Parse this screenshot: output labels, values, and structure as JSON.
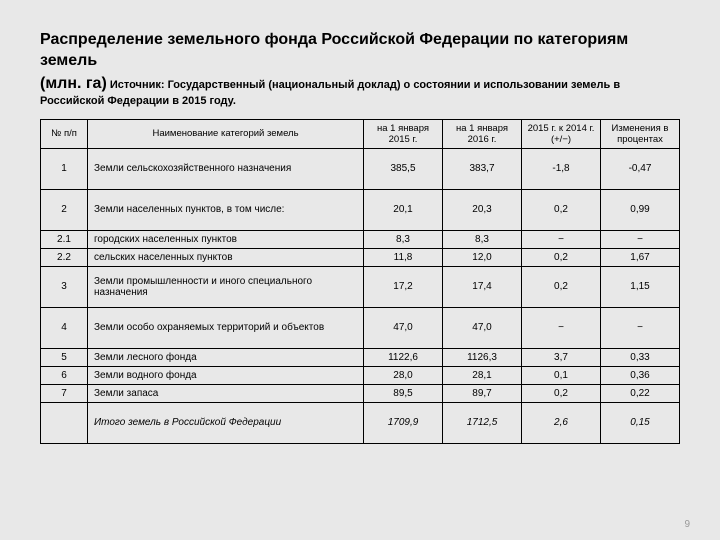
{
  "title_line1": "Распределение земельного фонда Российской Федерации по категориям земель",
  "subtitle_big": "(млн. га)",
  "subtitle_small": "Источник: Государственный (национальный доклад) о состоянии и использовании земель в Российской Федерации в 2015 году.",
  "headers": {
    "col1": "№ п/п",
    "col2": "Наименование категорий земель",
    "col3": "на 1 января 2015 г.",
    "col4": "на 1 января 2016 г.",
    "col5": "2015 г. к 2014 г. (+/−)",
    "col6": "Изменения в процентах"
  },
  "rows": [
    {
      "n": "1",
      "name": "Земли сельскохозяйственного назначения",
      "v1": "385,5",
      "v2": "383,7",
      "v3": "-1,8",
      "v4": "-0,47",
      "tall": true
    },
    {
      "n": "2",
      "name": "Земли населенных пунктов, в том числе:",
      "v1": "20,1",
      "v2": "20,3",
      "v3": "0,2",
      "v4": "0,99",
      "tall": true
    },
    {
      "n": "2.1",
      "name": "городских населенных пунктов",
      "v1": "8,3",
      "v2": "8,3",
      "v3": "−",
      "v4": "−"
    },
    {
      "n": "2.2",
      "name": "сельских населенных пунктов",
      "v1": "11,8",
      "v2": "12,0",
      "v3": "0,2",
      "v4": "1,67"
    },
    {
      "n": "3",
      "name": "Земли промышленности и иного специального назначения",
      "v1": "17,2",
      "v2": "17,4",
      "v3": "0,2",
      "v4": "1,15",
      "tall": true
    },
    {
      "n": "4",
      "name": "Земли особо охраняемых территорий и объектов",
      "v1": "47,0",
      "v2": "47,0",
      "v3": "−",
      "v4": "−",
      "tall": true
    },
    {
      "n": "5",
      "name": "Земли лесного фонда",
      "v1": "1122,6",
      "v2": "1126,3",
      "v3": "3,7",
      "v4": "0,33"
    },
    {
      "n": "6",
      "name": "Земли водного фонда",
      "v1": "28,0",
      "v2": "28,1",
      "v3": "0,1",
      "v4": "0,36"
    },
    {
      "n": "7",
      "name": "Земли запаса",
      "v1": "89,5",
      "v2": "89,7",
      "v3": "0,2",
      "v4": "0,22"
    }
  ],
  "total": {
    "name": "Итого земель в Российской Федерации",
    "v1": "1709,9",
    "v2": "1712,5",
    "v3": "2,6",
    "v4": "0,15"
  },
  "page_number": "9"
}
